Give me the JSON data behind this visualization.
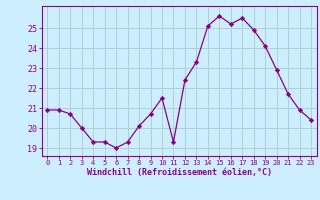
{
  "x": [
    0,
    1,
    2,
    3,
    4,
    5,
    6,
    7,
    8,
    9,
    10,
    11,
    12,
    13,
    14,
    15,
    16,
    17,
    18,
    19,
    20,
    21,
    22,
    23
  ],
  "y": [
    20.9,
    20.9,
    20.7,
    20.0,
    19.3,
    19.3,
    19.0,
    19.3,
    20.1,
    20.7,
    21.5,
    19.3,
    22.4,
    23.3,
    25.1,
    25.6,
    25.2,
    25.5,
    24.9,
    24.1,
    22.9,
    21.7,
    20.9,
    20.4
  ],
  "line_color": "#880088",
  "marker": "D",
  "marker_size": 2.2,
  "bg_color": "#cceeff",
  "grid_color": "#aacccc",
  "axis_color": "#880088",
  "tick_color": "#880088",
  "xlabel": "Windchill (Refroidissement éolien,°C)",
  "xlabel_fontsize": 6.0,
  "xtick_fontsize": 5.0,
  "ytick_fontsize": 6.0,
  "ylabel_ticks": [
    19,
    20,
    21,
    22,
    23,
    24,
    25
  ],
  "ylim": [
    18.6,
    26.1
  ],
  "xlim": [
    -0.5,
    23.5
  ]
}
